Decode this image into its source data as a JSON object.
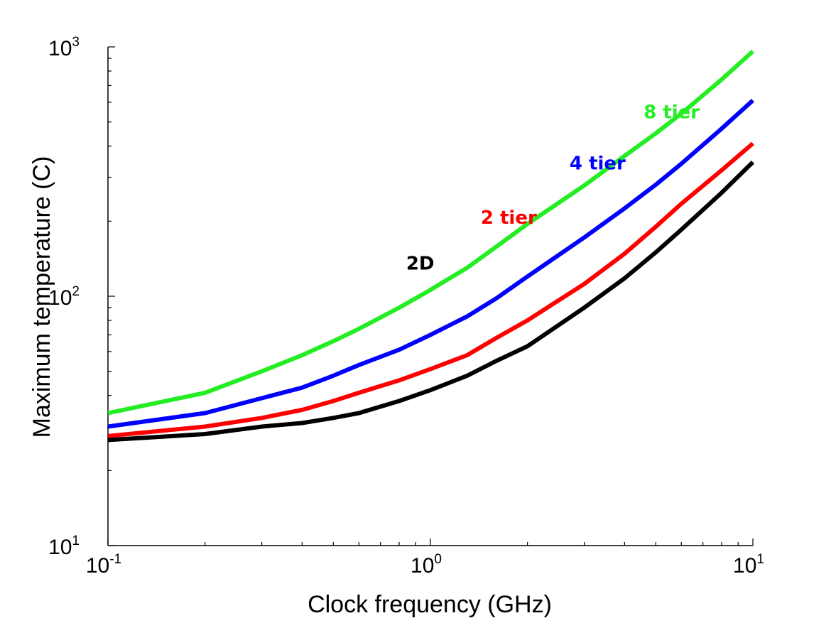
{
  "chart_data": {
    "type": "line",
    "x_scale": "log",
    "y_scale": "log",
    "xlim": [
      0.1,
      10
    ],
    "ylim": [
      10,
      1000
    ],
    "xlabel": "Clock frequency (GHz)",
    "ylabel": "Maximum temperature (C)",
    "x_ticks": [
      {
        "value": 0.1,
        "base": "10",
        "exp": "-1"
      },
      {
        "value": 1,
        "base": "10",
        "exp": "0"
      },
      {
        "value": 10,
        "base": "10",
        "exp": "1"
      }
    ],
    "y_ticks": [
      {
        "value": 10,
        "base": "10",
        "exp": "1"
      },
      {
        "value": 100,
        "base": "10",
        "exp": "2"
      },
      {
        "value": 1000,
        "base": "10",
        "exp": "3"
      }
    ],
    "grid": false,
    "legend": "none",
    "series": [
      {
        "name": "2D",
        "color": "#000000",
        "label_at": {
          "x": 0.93,
          "y": 128
        },
        "points": [
          [
            0.1,
            26.5
          ],
          [
            0.2,
            28
          ],
          [
            0.3,
            30
          ],
          [
            0.4,
            31
          ],
          [
            0.5,
            32.5
          ],
          [
            0.6,
            34
          ],
          [
            0.8,
            38
          ],
          [
            1,
            42
          ],
          [
            1.3,
            48
          ],
          [
            1.6,
            55
          ],
          [
            2,
            63
          ],
          [
            3,
            90
          ],
          [
            4,
            118
          ],
          [
            5,
            150
          ],
          [
            6,
            185
          ],
          [
            8,
            260
          ],
          [
            10,
            345
          ]
        ]
      },
      {
        "name": "2 tier",
        "color": "#ff0000",
        "label_at": {
          "x": 1.75,
          "y": 195
        },
        "points": [
          [
            0.1,
            27.5
          ],
          [
            0.2,
            30
          ],
          [
            0.3,
            32.5
          ],
          [
            0.4,
            35
          ],
          [
            0.5,
            38
          ],
          [
            0.6,
            41
          ],
          [
            0.8,
            46
          ],
          [
            1,
            51
          ],
          [
            1.3,
            58
          ],
          [
            1.6,
            68
          ],
          [
            2,
            80
          ],
          [
            3,
            112
          ],
          [
            4,
            148
          ],
          [
            5,
            190
          ],
          [
            6,
            235
          ],
          [
            8,
            320
          ],
          [
            10,
            410
          ]
        ]
      },
      {
        "name": "4 tier",
        "color": "#0000ff",
        "label_at": {
          "x": 3.3,
          "y": 323
        },
        "points": [
          [
            0.1,
            30
          ],
          [
            0.2,
            34
          ],
          [
            0.3,
            39
          ],
          [
            0.4,
            43
          ],
          [
            0.5,
            48
          ],
          [
            0.6,
            53
          ],
          [
            0.8,
            61
          ],
          [
            1,
            70
          ],
          [
            1.3,
            83
          ],
          [
            1.6,
            98
          ],
          [
            2,
            120
          ],
          [
            3,
            172
          ],
          [
            4,
            225
          ],
          [
            5,
            280
          ],
          [
            6,
            340
          ],
          [
            8,
            470
          ],
          [
            10,
            610
          ]
        ]
      },
      {
        "name": "8 tier",
        "color": "#22ee22",
        "label_at": {
          "x": 5.6,
          "y": 517
        },
        "points": [
          [
            0.1,
            34
          ],
          [
            0.2,
            41
          ],
          [
            0.3,
            50
          ],
          [
            0.4,
            58
          ],
          [
            0.5,
            66
          ],
          [
            0.6,
            74
          ],
          [
            0.8,
            90
          ],
          [
            1,
            106
          ],
          [
            1.3,
            130
          ],
          [
            1.6,
            158
          ],
          [
            2,
            195
          ],
          [
            3,
            278
          ],
          [
            4,
            365
          ],
          [
            5,
            450
          ],
          [
            6,
            540
          ],
          [
            8,
            740
          ],
          [
            10,
            960
          ]
        ]
      }
    ]
  }
}
